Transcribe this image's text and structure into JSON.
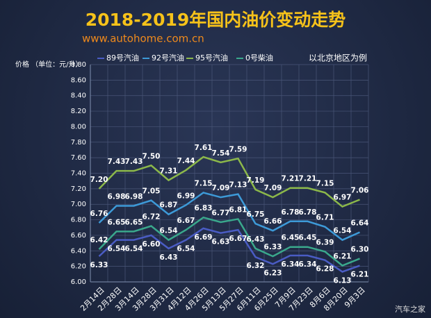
{
  "chart_data": {
    "type": "line",
    "title": "2018-2019年国内油价变动走势",
    "subtitle": "www.autohome.com.cn",
    "y_label": "价格 （单位：元/升）",
    "annotation": "以北京地区为例",
    "watermark": "汽车之家",
    "categories": [
      "2月14日",
      "2月28日",
      "3月14日",
      "3月28日",
      "3月31日",
      "4月12日",
      "4月26日",
      "5月13日",
      "5月27日",
      "6月11日",
      "6月25日",
      "7月9日",
      "7月23日",
      "8月6日",
      "8月20日",
      "9月3日"
    ],
    "series": [
      {
        "name": "89号汽油",
        "color": "#4a5cc4",
        "values": [
          6.33,
          6.54,
          6.54,
          6.6,
          6.43,
          6.54,
          6.69,
          6.63,
          6.67,
          6.32,
          6.23,
          6.34,
          6.34,
          6.28,
          6.13,
          6.21
        ],
        "value_labels": [
          "6.33",
          "6.54",
          "6.54",
          "6.60",
          "6.43",
          "6.54",
          "6.69",
          "6.63",
          "6.67",
          "6.32",
          "6.23",
          "6.34",
          "6.34",
          "6.28",
          "6.13",
          "6.21"
        ]
      },
      {
        "name": "92号汽油",
        "color": "#3d9ad8",
        "values": [
          6.76,
          6.98,
          6.98,
          7.05,
          6.87,
          6.99,
          7.15,
          7.09,
          7.13,
          6.75,
          6.66,
          6.78,
          6.78,
          6.71,
          6.54,
          6.64
        ],
        "value_labels": [
          "6.76",
          "6.98",
          "6.98",
          "7.05",
          "6.87",
          "6.99",
          "7.15",
          "7.09",
          "7.13",
          "6.75",
          "6.66",
          "6.78",
          "6.78",
          "6.71",
          "6.54",
          "6.64"
        ]
      },
      {
        "name": "95号汽油",
        "color": "#8cb84a",
        "values": [
          7.2,
          7.43,
          7.43,
          7.5,
          7.31,
          7.44,
          7.61,
          7.54,
          7.59,
          7.19,
          7.09,
          7.21,
          7.21,
          7.15,
          6.97,
          7.06
        ],
        "value_labels": [
          "7.20",
          "7.43",
          "7.43",
          "7.50",
          "7.31",
          "7.44",
          "7.61",
          "7.54",
          "7.59",
          "7.19",
          "7.09",
          "7.21",
          "7.21",
          "7.15",
          "6.97",
          "7.06"
        ]
      },
      {
        "name": "0号柴油",
        "color": "#3aa88c",
        "values": [
          6.42,
          6.65,
          6.65,
          6.72,
          6.54,
          6.67,
          6.83,
          6.77,
          6.81,
          6.43,
          6.33,
          6.45,
          6.45,
          6.39,
          6.21,
          6.3
        ],
        "value_labels": [
          "6.42",
          "6.65",
          "6.65",
          "6.72",
          "6.54",
          "6.67",
          "6.83",
          "6.77",
          "6.81",
          "6.43",
          "6.33",
          "6.45",
          "6.45",
          "6.39",
          "6.21",
          "6.30"
        ]
      }
    ],
    "ylim": [
      6,
      8.8
    ],
    "yticks": [
      {
        "value": 6,
        "label": "6.00"
      },
      {
        "value": 6.2,
        "label": "6.20"
      },
      {
        "value": 6.4,
        "label": "6.40"
      },
      {
        "value": 6.6,
        "label": "6.60"
      },
      {
        "value": 6.8,
        "label": "6.80"
      },
      {
        "value": 7,
        "label": "7.00"
      },
      {
        "value": 7.2,
        "label": "7.20"
      },
      {
        "value": 7.4,
        "label": "7.40"
      },
      {
        "value": 7.6,
        "label": "7.60"
      },
      {
        "value": 7.8,
        "label": "7.80"
      },
      {
        "value": 8,
        "label": "8.00"
      },
      {
        "value": 8.2,
        "label": "8.20"
      },
      {
        "value": 8.4,
        "label": "8.40"
      },
      {
        "value": 8.6,
        "label": "8.60"
      },
      {
        "value": 8.8,
        "label": "8.80"
      }
    ],
    "grid": true
  }
}
